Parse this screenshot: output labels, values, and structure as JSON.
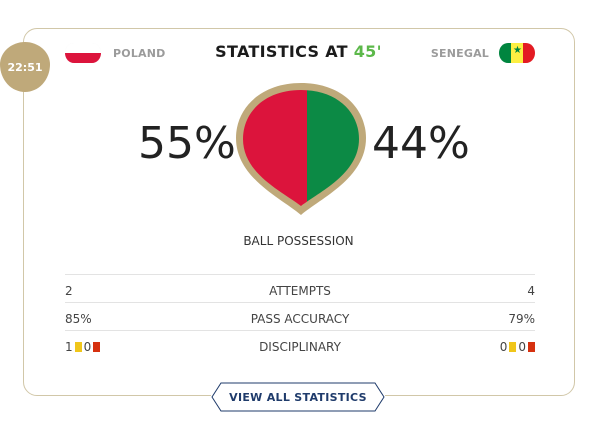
{
  "match_time": "22:51",
  "title": {
    "prefix": "STATISTICS AT",
    "minute": "45'"
  },
  "home": {
    "name": "POLAND",
    "possession": "55%",
    "attempts": "2",
    "pass_accuracy": "85%",
    "yellow": "1",
    "red": "0"
  },
  "away": {
    "name": "SENEGAL",
    "possession": "44%",
    "attempts": "4",
    "pass_accuracy": "79%",
    "yellow": "0",
    "red": "0"
  },
  "possession_label": "BALL POSSESSION",
  "stats_labels": {
    "attempts": "ATTEMPTS",
    "pass_accuracy": "PASS ACCURACY",
    "disciplinary": "DISCIPLINARY"
  },
  "button_label": "VIEW ALL STATISTICS",
  "colors": {
    "home": "#dc143c",
    "away": "#0c8a45",
    "gold": "#bfa97a",
    "accent_green": "#5cb84a",
    "navy": "#1f3b6b"
  },
  "icons": {
    "ball": "ball-possession-icon",
    "home_flag": "poland-flag-icon",
    "away_flag": "senegal-flag-icon"
  }
}
